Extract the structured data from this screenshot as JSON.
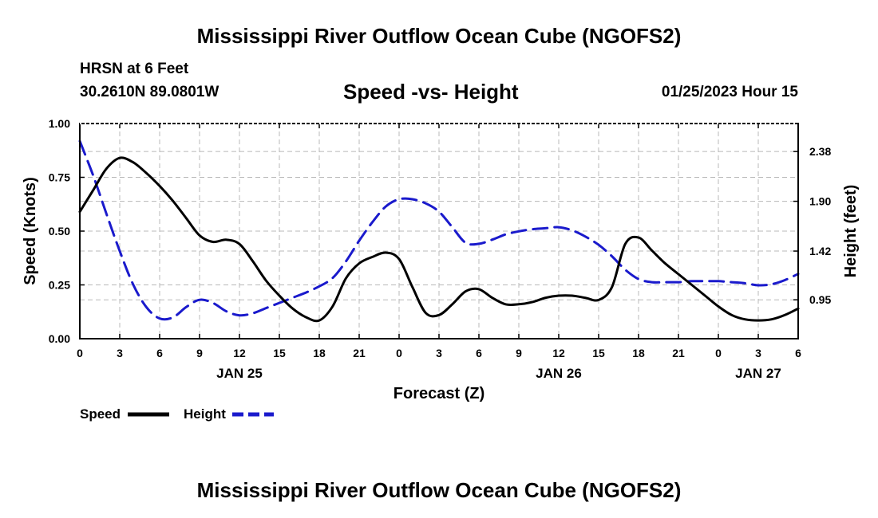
{
  "page": {
    "title": "Mississippi River Outflow Ocean Cube (NGOFS2)",
    "footer_title": "Mississippi River Outflow Ocean Cube (NGOFS2)",
    "station": "HRSN at 6 Feet",
    "coords": "30.2610N  89.0801W",
    "timestamp": "01/25/2023 Hour 15"
  },
  "chart_data": {
    "type": "line",
    "title": "Speed -vs- Height",
    "xlabel": "Forecast (Z)",
    "ylabel": "Speed (Knots)",
    "y2label": "Height (feet)",
    "xlim": [
      0,
      54
    ],
    "ylim": [
      0,
      1.0
    ],
    "y2lim": [
      0.575,
      2.65
    ],
    "x_ticks": [
      0,
      3,
      6,
      9,
      12,
      15,
      18,
      21,
      24,
      27,
      30,
      33,
      36,
      39,
      42,
      45,
      48,
      51,
      54
    ],
    "x_tick_labels": [
      "0",
      "3",
      "6",
      "9",
      "12",
      "15",
      "18",
      "21",
      "0",
      "3",
      "6",
      "9",
      "12",
      "15",
      "18",
      "21",
      "0",
      "3",
      "6"
    ],
    "date_labels": [
      {
        "x": 12,
        "label": "JAN 25"
      },
      {
        "x": 36,
        "label": "JAN 26"
      },
      {
        "x": 51,
        "label": "JAN 27"
      }
    ],
    "y_ticks": [
      0.0,
      0.25,
      0.5,
      0.75,
      1.0
    ],
    "y_tick_labels": [
      "0.00",
      "0.25",
      "0.50",
      "0.75",
      "1.00"
    ],
    "y2_ticks": [
      0.95,
      1.42,
      1.9,
      2.38
    ],
    "y2_tick_labels": [
      "0.95",
      "1.42",
      "1.90",
      "2.38"
    ],
    "grid": true,
    "legend": "bottom-left",
    "series": [
      {
        "name": "Speed",
        "axis": "left",
        "color": "#000000",
        "style": "solid",
        "x": [
          0,
          1,
          2,
          3,
          4,
          5,
          6,
          7,
          8,
          9,
          10,
          11,
          12,
          13,
          14,
          15,
          16,
          17,
          18,
          19,
          20,
          21,
          22,
          23,
          24,
          25,
          26,
          27,
          28,
          29,
          30,
          31,
          32,
          33,
          34,
          35,
          36,
          37,
          38,
          39,
          40,
          41,
          42,
          43,
          44,
          45,
          46,
          47,
          48,
          49,
          50,
          51,
          52,
          53,
          54
        ],
        "values": [
          0.59,
          0.69,
          0.79,
          0.84,
          0.82,
          0.77,
          0.71,
          0.64,
          0.56,
          0.48,
          0.45,
          0.46,
          0.44,
          0.36,
          0.27,
          0.2,
          0.14,
          0.1,
          0.085,
          0.15,
          0.28,
          0.35,
          0.38,
          0.4,
          0.37,
          0.24,
          0.12,
          0.11,
          0.16,
          0.22,
          0.23,
          0.19,
          0.16,
          0.16,
          0.17,
          0.19,
          0.2,
          0.2,
          0.19,
          0.18,
          0.24,
          0.44,
          0.47,
          0.41,
          0.35,
          0.3,
          0.25,
          0.2,
          0.15,
          0.11,
          0.09,
          0.085,
          0.09,
          0.11,
          0.14
        ]
      },
      {
        "name": "Height",
        "axis": "right",
        "color": "#1a1acc",
        "style": "dashed",
        "x": [
          0,
          1,
          2,
          3,
          4,
          5,
          6,
          7,
          8,
          9,
          10,
          11,
          12,
          13,
          14,
          15,
          16,
          17,
          18,
          19,
          20,
          21,
          22,
          23,
          24,
          25,
          26,
          27,
          28,
          29,
          30,
          31,
          32,
          33,
          34,
          35,
          36,
          37,
          38,
          39,
          40,
          41,
          42,
          43,
          44,
          45,
          46,
          47,
          48,
          49,
          50,
          51,
          52,
          53,
          54
        ],
        "values": [
          2.48,
          2.15,
          1.78,
          1.42,
          1.1,
          0.88,
          0.77,
          0.78,
          0.88,
          0.95,
          0.92,
          0.84,
          0.8,
          0.82,
          0.87,
          0.92,
          0.97,
          1.02,
          1.08,
          1.16,
          1.32,
          1.52,
          1.7,
          1.85,
          1.92,
          1.92,
          1.88,
          1.8,
          1.65,
          1.5,
          1.49,
          1.53,
          1.58,
          1.61,
          1.63,
          1.64,
          1.65,
          1.62,
          1.56,
          1.48,
          1.37,
          1.24,
          1.15,
          1.12,
          1.12,
          1.12,
          1.13,
          1.13,
          1.13,
          1.12,
          1.11,
          1.09,
          1.1,
          1.14,
          1.2
        ]
      }
    ]
  }
}
